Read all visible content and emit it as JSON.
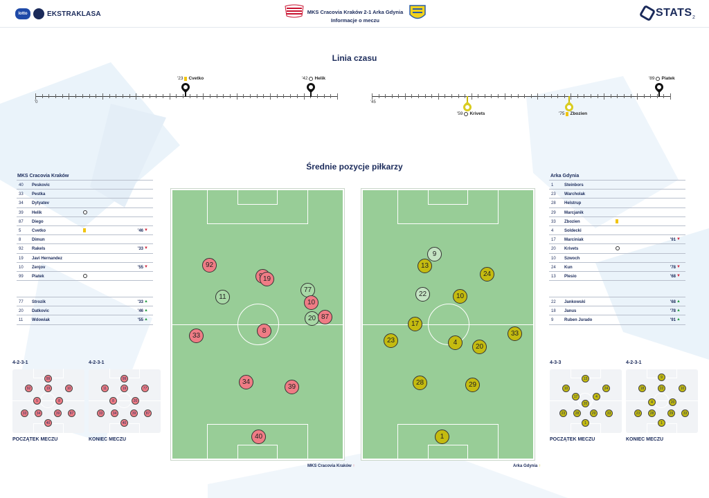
{
  "header": {
    "brand": "EKSTRAKLASA",
    "sponsor": "lotto",
    "match_line1": "MKS Cracovia Kraków 2-1 Arka Gdynia",
    "match_line2": "Informacje o meczu",
    "stats_logo": "STATS",
    "page_number": "2"
  },
  "timeline": {
    "title": "Linia czasu",
    "first_half_start": "'0",
    "second_half_start": "'45",
    "events_top": [
      {
        "minute": "'23",
        "icon": "yellow-card",
        "player": "Cvetko"
      },
      {
        "minute": "'42",
        "icon": "goal-ball",
        "player": "Helik"
      },
      {
        "minute": "'89",
        "icon": "goal-ball",
        "player": "Piatek"
      }
    ],
    "events_bottom": [
      {
        "minute": "'59",
        "icon": "goal-ball",
        "player": "Krivets"
      },
      {
        "minute": "'75",
        "icon": "yellow-card",
        "player": "Zbozien"
      }
    ]
  },
  "positions_title": "Średnie pozycje piłkarzy",
  "home": {
    "name": "MKS Cracovia Kraków",
    "players": [
      {
        "num": "40",
        "name": "Peskovic",
        "icon": "",
        "min": "",
        "arrow": ""
      },
      {
        "num": "33",
        "name": "Pestka",
        "icon": "",
        "min": "",
        "arrow": ""
      },
      {
        "num": "34",
        "name": "Dytyatev",
        "icon": "",
        "min": "",
        "arrow": ""
      },
      {
        "num": "39",
        "name": "Helik",
        "icon": "goal-ball",
        "min": "",
        "arrow": ""
      },
      {
        "num": "87",
        "name": "Diego",
        "icon": "",
        "min": "",
        "arrow": ""
      },
      {
        "num": "5",
        "name": "Cvetko",
        "icon": "yellow-card",
        "min": "'46",
        "arrow": "down"
      },
      {
        "num": "8",
        "name": "Dimun",
        "icon": "",
        "min": "",
        "arrow": ""
      },
      {
        "num": "92",
        "name": "Rakels",
        "icon": "",
        "min": "'33",
        "arrow": "down"
      },
      {
        "num": "19",
        "name": "Javi Hernandez",
        "icon": "",
        "min": "",
        "arrow": ""
      },
      {
        "num": "10",
        "name": "Zenjov",
        "icon": "",
        "min": "'55",
        "arrow": "down"
      },
      {
        "num": "99",
        "name": "Piatek",
        "icon": "goal-ball",
        "min": "",
        "arrow": ""
      }
    ],
    "subs": [
      {
        "num": "77",
        "name": "Strozik",
        "min": "'33",
        "arrow": "up"
      },
      {
        "num": "20",
        "name": "Datkovic",
        "min": "'46",
        "arrow": "up"
      },
      {
        "num": "11",
        "name": "Wdowiak",
        "min": "'55",
        "arrow": "up"
      }
    ],
    "pitch_caption": "MKS Cracovia Kraków",
    "pitch_dots": [
      {
        "num": "92",
        "kind": "red"
      },
      {
        "num": "99",
        "kind": "red"
      },
      {
        "num": "19",
        "kind": "red"
      },
      {
        "num": "77",
        "kind": "grn"
      },
      {
        "num": "11",
        "kind": "grn"
      },
      {
        "num": "10",
        "kind": "red"
      },
      {
        "num": "20",
        "kind": "grn"
      },
      {
        "num": "87",
        "kind": "red"
      },
      {
        "num": "8",
        "kind": "red"
      },
      {
        "num": "33",
        "kind": "red"
      },
      {
        "num": "34",
        "kind": "red"
      },
      {
        "num": "39",
        "kind": "red"
      },
      {
        "num": "40",
        "kind": "red"
      }
    ],
    "formation_start": "4-2-3-1",
    "formation_end": "4-2-3-1",
    "start_label": "POCZĄTEK MECZU",
    "end_label": "KONIEC MECZU",
    "mini_start": [
      "99",
      "92",
      "19",
      "10",
      "5",
      "8",
      "33",
      "34",
      "39",
      "87",
      "40"
    ],
    "mini_end": [
      "99",
      "11",
      "19",
      "77",
      "8",
      "20",
      "33",
      "34",
      "39",
      "87",
      "40"
    ]
  },
  "away": {
    "name": "Arka Gdynia",
    "players": [
      {
        "num": "1",
        "name": "Steinbors",
        "icon": "",
        "min": "",
        "arrow": ""
      },
      {
        "num": "23",
        "name": "Warcholak",
        "icon": "",
        "min": "",
        "arrow": ""
      },
      {
        "num": "28",
        "name": "Helstrup",
        "icon": "",
        "min": "",
        "arrow": ""
      },
      {
        "num": "29",
        "name": "Marcjanik",
        "icon": "",
        "min": "",
        "arrow": ""
      },
      {
        "num": "33",
        "name": "Zbozien",
        "icon": "yellow-card",
        "min": "",
        "arrow": ""
      },
      {
        "num": "4",
        "name": "Soldecki",
        "icon": "",
        "min": "",
        "arrow": ""
      },
      {
        "num": "17",
        "name": "Marciniak",
        "icon": "",
        "min": "'91",
        "arrow": "down"
      },
      {
        "num": "20",
        "name": "Krivets",
        "icon": "goal-ball",
        "min": "",
        "arrow": ""
      },
      {
        "num": "10",
        "name": "Szwoch",
        "icon": "",
        "min": "",
        "arrow": ""
      },
      {
        "num": "24",
        "name": "Kun",
        "icon": "",
        "min": "'78",
        "arrow": "down"
      },
      {
        "num": "13",
        "name": "Plesio",
        "icon": "",
        "min": "'68",
        "arrow": "down"
      }
    ],
    "subs": [
      {
        "num": "22",
        "name": "Jankowski",
        "min": "'68",
        "arrow": "up"
      },
      {
        "num": "18",
        "name": "Janus",
        "min": "'78",
        "arrow": "up"
      },
      {
        "num": "9",
        "name": "Ruben Jurado",
        "min": "'91",
        "arrow": "up"
      }
    ],
    "pitch_caption": "Arka Gdynia",
    "pitch_dots": [
      {
        "num": "9",
        "kind": "wht"
      },
      {
        "num": "13",
        "kind": "yel"
      },
      {
        "num": "24",
        "kind": "yel"
      },
      {
        "num": "22",
        "kind": "wht"
      },
      {
        "num": "10",
        "kind": "yel"
      },
      {
        "num": "17",
        "kind": "yel"
      },
      {
        "num": "23",
        "kind": "yel"
      },
      {
        "num": "4",
        "kind": "yel"
      },
      {
        "num": "20",
        "kind": "yel"
      },
      {
        "num": "33",
        "kind": "yel"
      },
      {
        "num": "28",
        "kind": "yel"
      },
      {
        "num": "29",
        "kind": "yel"
      },
      {
        "num": "1",
        "kind": "yel"
      }
    ],
    "formation_start": "4-3-3",
    "formation_end": "4-2-3-1",
    "start_label": "POCZĄTEK MECZU",
    "end_label": "KONIEC MECZU",
    "mini_start": [
      "13",
      "10",
      "24",
      "17",
      "20",
      "4",
      "23",
      "28",
      "29",
      "33",
      "1"
    ],
    "mini_end": [
      "9",
      "18",
      "22",
      "10",
      "4",
      "20",
      "23",
      "28",
      "29",
      "33",
      "1"
    ]
  }
}
